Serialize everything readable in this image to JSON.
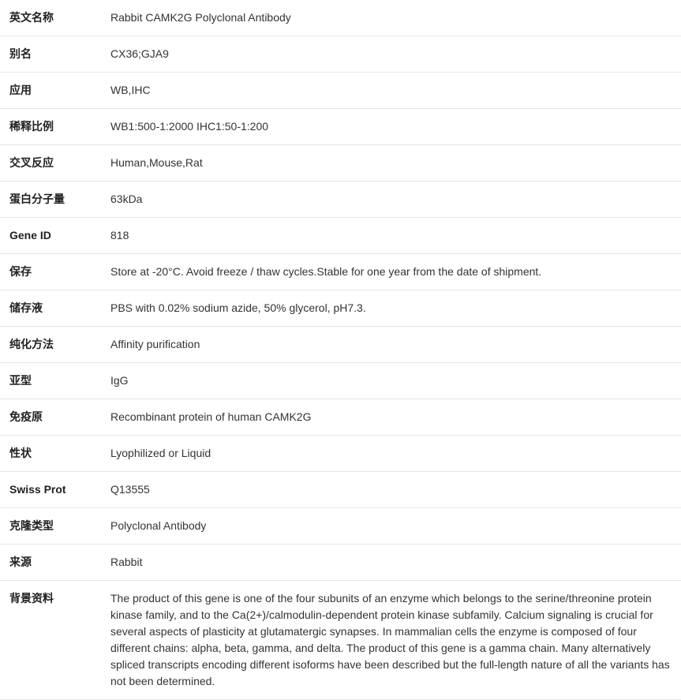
{
  "rows": [
    {
      "label": "英文名称",
      "value": "Rabbit CAMK2G Polyclonal Antibody"
    },
    {
      "label": "别名",
      "value": "CX36;GJA9"
    },
    {
      "label": "应用",
      "value": "WB,IHC"
    },
    {
      "label": "稀释比例",
      "value": "WB1:500-1:2000 IHC1:50-1:200"
    },
    {
      "label": "交叉反应",
      "value": "Human,Mouse,Rat"
    },
    {
      "label": "蛋白分子量",
      "value": "63kDa"
    },
    {
      "label": "Gene ID",
      "value": "818"
    },
    {
      "label": "保存",
      "value": "Store at -20°C. Avoid freeze / thaw cycles.Stable for one year from the date of shipment."
    },
    {
      "label": "储存液",
      "value": "PBS with 0.02% sodium azide, 50% glycerol, pH7.3."
    },
    {
      "label": "纯化方法",
      "value": "Affinity purification"
    },
    {
      "label": "亚型",
      "value": "IgG"
    },
    {
      "label": "免疫原",
      "value": "Recombinant protein of human CAMK2G"
    },
    {
      "label": "性状",
      "value": "Lyophilized or Liquid"
    },
    {
      "label": "Swiss Prot",
      "value": "Q13555"
    },
    {
      "label": "克隆类型",
      "value": "Polyclonal Antibody"
    },
    {
      "label": "来源",
      "value": "Rabbit"
    },
    {
      "label": "背景资料",
      "value": "The product of this gene is one of the four subunits of an enzyme which belongs to the serine/threonine protein kinase family, and to the Ca(2+)/calmodulin-dependent protein kinase subfamily. Calcium signaling is crucial for several aspects of plasticity at glutamatergic synapses. In mammalian cells the enzyme is composed of four different chains: alpha, beta, gamma, and delta. The product of this gene is a gamma chain. Many alternatively spliced transcripts encoding different isoforms have been described but the full-length nature of all the variants has not been determined."
    }
  ]
}
